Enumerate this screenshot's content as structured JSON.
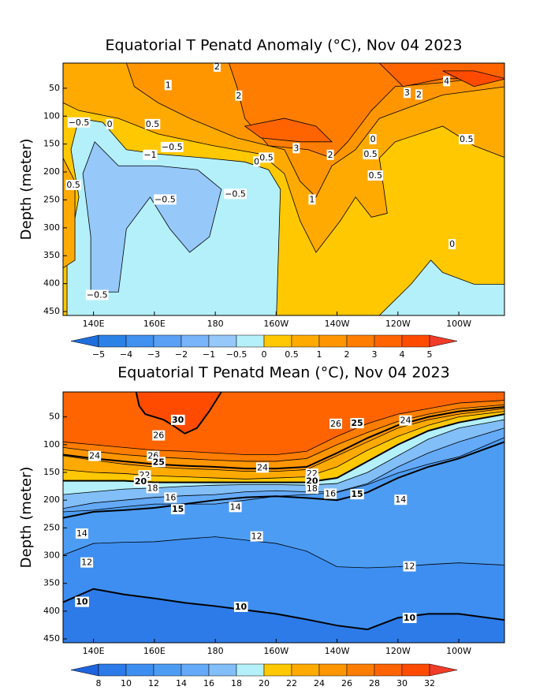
{
  "chart_data": [
    {
      "type": "contour",
      "title": "Equatorial T Penatd Anomaly (°C), Nov 04 2023",
      "y_label": "Depth (meter)",
      "xlim": [
        130,
        275
      ],
      "ylim": [
        457,
        5
      ],
      "xticks": [
        {
          "value": 140,
          "label": "140E"
        },
        {
          "value": 160,
          "label": "160E"
        },
        180,
        {
          "value": 200,
          "label": "160W"
        },
        {
          "value": 220,
          "label": "140W"
        },
        {
          "value": 240,
          "label": "120W"
        },
        {
          "value": 260,
          "label": "100W"
        }
      ],
      "yticks": [
        50,
        100,
        150,
        200,
        250,
        300,
        350,
        400,
        450
      ],
      "levels": [
        {
          "value": -5,
          "label": "−5"
        },
        {
          "value": -4,
          "label": "−4"
        },
        {
          "value": -3,
          "label": "−3"
        },
        {
          "value": -2,
          "label": "−2"
        },
        {
          "value": -1,
          "label": "−1"
        },
        {
          "value": -0.5,
          "label": "−0.5"
        },
        0,
        0.5,
        1,
        2,
        3,
        4,
        5
      ],
      "colors": [
        "#1e6edc",
        "#2d82e6",
        "#4191f0",
        "#5aa0f5",
        "#78b4fa",
        "#96c8fa",
        "#b4f0fa",
        "#ffc800",
        "#ffaa00",
        "#ff9600",
        "#ff7d00",
        "#ff6400",
        "#ff4b00",
        "#f03c28"
      ],
      "background": "#ffc800",
      "regions": [
        {
          "color": "#b4f0fa",
          "x": [
            131.3,
            131.3,
            135.2,
            132.6,
            135.2,
            143,
            150.8,
            161.2,
            176.8,
            189.7,
            197.5,
            201.4,
            200.1
          ],
          "y": [
            457,
            358,
            245,
            160,
            104,
            111,
            160,
            168,
            175,
            182,
            196,
            231,
            457
          ]
        },
        {
          "color": "#b4f0fa",
          "x": [
            233.9,
            244.3,
            250.8,
            254.7,
            265,
            275.5,
            275.5
          ],
          "y": [
            457,
            401,
            358,
            380,
            401,
            401,
            457
          ]
        },
        {
          "color": "#b4f0fa",
          "x": [
            237.8,
            244.3,
            252.1,
            252.1,
            244.3
          ],
          "y": [
            118,
            76,
            69,
            97,
            125
          ]
        },
        {
          "color": "#96c8fa",
          "x": [
            139.1,
            139.1,
            136.5,
            140.4,
            148.2,
            161.2,
            174.2,
            182,
            178.1,
            171.6,
            165.1,
            158.6,
            150.8,
            148.2
          ],
          "y": [
            415,
            316,
            203,
            146,
            189,
            189,
            196,
            231,
            316,
            344,
            302,
            245,
            302,
            415
          ]
        },
        {
          "color": "#ffaa00",
          "x": [
            130,
            275.5,
            275.5,
            265,
            254.7,
            239.1,
            233.9,
            236.5,
            231.3,
            226.1,
            221,
            213.1,
            207.9,
            202.7,
            195,
            179.4,
            161.2,
            148.2,
            135.2,
            130
          ],
          "y": [
            5,
            5,
            175,
            153,
            118,
            146,
            175,
            274,
            281,
            245,
            288,
            344,
            288,
            203,
            168,
            153,
            132,
            104,
            90,
            76
          ]
        },
        {
          "color": "#ffaa00",
          "x": [
            130,
            133.9,
            133.9,
            130
          ],
          "y": [
            175,
            217,
            358,
            372
          ]
        },
        {
          "color": "#ff9600",
          "x": [
            150.8,
            275.5,
            275.5,
            254.7,
            233.9,
            226.1,
            218.3,
            213.1,
            207.9,
            202.7,
            187.1,
            171.6,
            161.2,
            153.4
          ],
          "y": [
            5,
            5,
            47,
            62,
            104,
            160,
            189,
            245,
            217,
            160,
            139,
            104,
            76,
            47
          ]
        },
        {
          "color": "#ff7d00",
          "x": [
            184.5,
            275.5,
            275.5,
            254.7,
            239.1,
            231.3,
            223.5,
            218.3,
            210.5,
            197.5,
            189.7,
            187.1
          ],
          "y": [
            5,
            5,
            26,
            40,
            47,
            90,
            146,
            175,
            160,
            153,
            104,
            47
          ]
        },
        {
          "color": "#ff6400",
          "x": [
            189.7,
            202.7,
            213.1,
            218.3,
            207.9,
            195
          ],
          "y": [
            118,
            104,
            118,
            146,
            146,
            139
          ]
        },
        {
          "color": "#ff6400",
          "x": [
            233.9,
            275.5,
            275.5,
            254.7,
            241.7
          ],
          "y": [
            5,
            5,
            33,
            33,
            47
          ]
        },
        {
          "color": "#ff4b00",
          "x": [
            254.7,
            265,
            275.5,
            265
          ],
          "y": [
            19,
            19,
            33,
            47
          ]
        }
      ],
      "annotations": [
        {
          "text": "2",
          "x": 180.6,
          "y": 12
        },
        {
          "text": "1",
          "x": 164.5,
          "y": 45
        },
        {
          "text": "2",
          "x": 187.7,
          "y": 64
        },
        {
          "text": "4",
          "x": 256,
          "y": 38
        },
        {
          "text": "3",
          "x": 243,
          "y": 59
        },
        {
          "text": "2",
          "x": 246.9,
          "y": 62
        },
        {
          "text": "0.5",
          "x": 159.4,
          "y": 115
        },
        {
          "text": "−0.5",
          "x": 135.2,
          "y": 112
        },
        {
          "text": "0",
          "x": 145.3,
          "y": 115
        },
        {
          "text": "−0.5",
          "x": 165.8,
          "y": 156
        },
        {
          "text": "−1",
          "x": 158.6,
          "y": 170
        },
        {
          "text": "0",
          "x": 193.6,
          "y": 182
        },
        {
          "text": "0.5",
          "x": 196.8,
          "y": 175
        },
        {
          "text": "3",
          "x": 206.6,
          "y": 158
        },
        {
          "text": "2",
          "x": 217.8,
          "y": 170
        },
        {
          "text": "0",
          "x": 231.8,
          "y": 142
        },
        {
          "text": "0.5",
          "x": 231,
          "y": 169
        },
        {
          "text": "0.5",
          "x": 262.5,
          "y": 142
        },
        {
          "text": "0.5",
          "x": 232.6,
          "y": 207
        },
        {
          "text": "0.5",
          "x": 133.4,
          "y": 224
        },
        {
          "text": "−0.5",
          "x": 163.5,
          "y": 250
        },
        {
          "text": "−0.5",
          "x": 186.6,
          "y": 240
        },
        {
          "text": "1",
          "x": 211.8,
          "y": 250
        },
        {
          "text": "0",
          "x": 257.8,
          "y": 330
        },
        {
          "text": "−0.5",
          "x": 141.2,
          "y": 421
        }
      ]
    },
    {
      "type": "isotherm",
      "title": "Equatorial T Penatd Mean (°C), Nov 04 2023",
      "y_label": "Depth (meter)",
      "xlim": [
        130,
        275
      ],
      "ylim": [
        457,
        5
      ],
      "xticks": [
        {
          "value": 140,
          "label": "140E"
        },
        {
          "value": 160,
          "label": "160E"
        },
        180,
        {
          "value": 200,
          "label": "160W"
        },
        {
          "value": 220,
          "label": "140W"
        },
        {
          "value": 240,
          "label": "120W"
        },
        {
          "value": 260,
          "label": "100W"
        }
      ],
      "yticks": [
        50,
        100,
        150,
        200,
        250,
        300,
        350,
        400,
        450
      ],
      "levels": [
        8,
        10,
        12,
        14,
        16,
        18,
        20,
        22,
        24,
        26,
        28,
        30,
        32
      ],
      "colors": [
        "#1e64dc",
        "#2d7be8",
        "#3d8ef0",
        "#4d9cf3",
        "#64aaf8",
        "#82bef8",
        "#b4f0fa",
        "#ffc800",
        "#ffaa00",
        "#ff9600",
        "#ff7d00",
        "#ff6400",
        "#ff4b00",
        "#f03c28"
      ],
      "bold_levels": [
        10,
        15,
        20,
        25,
        30
      ],
      "x_grid": [
        130,
        140,
        150,
        160,
        170,
        180,
        190,
        200,
        210,
        220,
        230,
        240,
        250,
        260,
        275
      ],
      "contours": [
        {
          "level": 10,
          "y": [
            384,
            360,
            370,
            377,
            385,
            391,
            398,
            405,
            415,
            426,
            433,
            412,
            405,
            405,
            416
          ]
        },
        {
          "level": 12,
          "y": [
            299,
            278,
            276,
            275,
            270,
            266,
            272,
            278,
            292,
            320,
            322,
            320,
            316,
            313,
            317
          ]
        },
        {
          "level": 14,
          "y": [
            221,
            218,
            212,
            207,
            207,
            207,
            200,
            193,
            190,
            186,
            172,
            151,
            135,
            122,
            87
          ]
        },
        {
          "level": 15,
          "y": [
            232,
            221,
            218,
            214,
            207,
            200,
            195,
            193,
            196,
            200,
            186,
            160,
            140,
            125,
            95
          ]
        },
        {
          "level": 16,
          "y": [
            215,
            205,
            200,
            195,
            192,
            190,
            185,
            183,
            185,
            185,
            170,
            140,
            115,
            95,
            70
          ]
        },
        {
          "level": 18,
          "y": [
            190,
            185,
            180,
            178,
            175,
            173,
            172,
            172,
            173,
            170,
            150,
            120,
            90,
            70,
            55
          ]
        },
        {
          "level": 20,
          "y": [
            165,
            165,
            165,
            168,
            168,
            168,
            168,
            168,
            168,
            160,
            130,
            100,
            75,
            60,
            45
          ]
        },
        {
          "level": 22,
          "y": [
            145,
            150,
            152,
            156,
            158,
            160,
            162,
            160,
            158,
            140,
            110,
            85,
            65,
            50,
            40
          ]
        },
        {
          "level": 24,
          "y": [
            120,
            128,
            135,
            140,
            143,
            145,
            148,
            148,
            145,
            120,
            95,
            70,
            55,
            45,
            35
          ]
        },
        {
          "level": 25,
          "y": [
            118,
            125,
            130,
            135,
            138,
            140,
            143,
            143,
            140,
            115,
            88,
            65,
            50,
            40,
            32
          ]
        },
        {
          "level": 26,
          "y": [
            105,
            112,
            118,
            122,
            125,
            128,
            130,
            130,
            125,
            100,
            78,
            58,
            45,
            35,
            28
          ]
        },
        {
          "level": 28,
          "y": [
            95,
            100,
            105,
            110,
            112,
            115,
            118,
            118,
            112,
            85,
            62,
            45,
            35,
            25,
            20
          ]
        },
        {
          "level": 30,
          "x": [
            154,
            155,
            157,
            160,
            163,
            166,
            170,
            174,
            178,
            182
          ],
          "y": [
            5,
            30,
            45,
            50,
            55,
            65,
            80,
            70,
            40,
            5
          ]
        }
      ],
      "annotations": [
        {
          "text": "30",
          "x": 167.7,
          "y": 56
        },
        {
          "text": "26",
          "x": 161.4,
          "y": 84
        },
        {
          "text": "26",
          "x": 219.6,
          "y": 63
        },
        {
          "text": "25",
          "x": 226.6,
          "y": 62
        },
        {
          "text": "24",
          "x": 242.5,
          "y": 57
        },
        {
          "text": "24",
          "x": 140.4,
          "y": 121
        },
        {
          "text": "26",
          "x": 159.6,
          "y": 121
        },
        {
          "text": "25",
          "x": 161.4,
          "y": 132
        },
        {
          "text": "24",
          "x": 195.5,
          "y": 142
        },
        {
          "text": "22",
          "x": 156.8,
          "y": 156
        },
        {
          "text": "20",
          "x": 155.5,
          "y": 167
        },
        {
          "text": "18",
          "x": 159.4,
          "y": 179
        },
        {
          "text": "22",
          "x": 211.8,
          "y": 153
        },
        {
          "text": "20",
          "x": 211.8,
          "y": 166
        },
        {
          "text": "18",
          "x": 211.8,
          "y": 180
        },
        {
          "text": "16",
          "x": 165.3,
          "y": 196
        },
        {
          "text": "16",
          "x": 217.8,
          "y": 189
        },
        {
          "text": "15",
          "x": 226.6,
          "y": 190
        },
        {
          "text": "15",
          "x": 167.7,
          "y": 217
        },
        {
          "text": "14",
          "x": 186.6,
          "y": 213
        },
        {
          "text": "14",
          "x": 240.9,
          "y": 200
        },
        {
          "text": "14",
          "x": 136.2,
          "y": 261
        },
        {
          "text": "12",
          "x": 193.6,
          "y": 266
        },
        {
          "text": "12",
          "x": 137.8,
          "y": 313
        },
        {
          "text": "12",
          "x": 243.8,
          "y": 320
        },
        {
          "text": "10",
          "x": 136.2,
          "y": 384
        },
        {
          "text": "10",
          "x": 188.4,
          "y": 393
        },
        {
          "text": "10",
          "x": 243.8,
          "y": 413
        }
      ]
    }
  ]
}
